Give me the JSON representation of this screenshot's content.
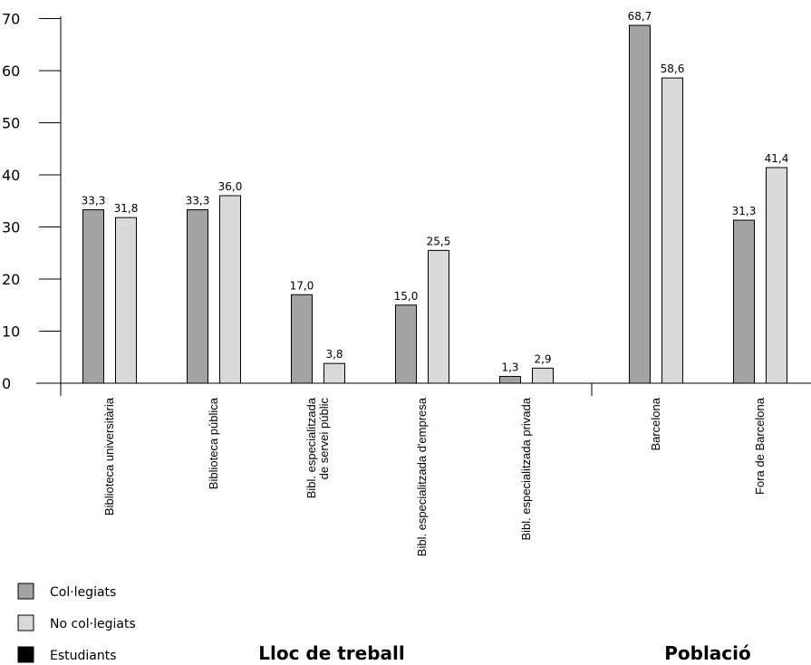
{
  "chart_data": {
    "type": "bar",
    "categories": [
      "Biblioteca universitària",
      "Biblioteca pública",
      [
        "Bibl. especialitzada",
        "de servei públic"
      ],
      "Bibl. especialitzada d'empresa",
      "Bibl. especialitzada privada",
      "Barcelona",
      "Fora de Barcelona"
    ],
    "series": [
      {
        "name": "Col·legiats",
        "values": [
          33.3,
          33.3,
          17.0,
          15.0,
          1.3,
          68.7,
          31.3
        ],
        "labels": [
          "33,3",
          "33,3",
          "17,0",
          "15,0",
          "1,3",
          "68,7",
          "31,3"
        ],
        "color": "#a3a3a3"
      },
      {
        "name": "No col·legiats",
        "values": [
          31.8,
          36.0,
          3.8,
          25.5,
          2.9,
          58.6,
          41.4
        ],
        "labels": [
          "31,8",
          "36,0",
          "3,8",
          "25,5",
          "2,9",
          "58,6",
          "41,4"
        ],
        "color": "#d9d9d9"
      }
    ],
    "legend": [
      {
        "name": "Col·legiats",
        "color": "#a3a3a3"
      },
      {
        "name": "No col·legiats",
        "color": "#d9d9d9"
      },
      {
        "name": "Estudiants",
        "color": "#000000"
      }
    ],
    "groups": [
      {
        "title": "Lloc de treball",
        "categories": [
          0,
          1,
          2,
          3,
          4
        ]
      },
      {
        "title": "Població",
        "categories": [
          5,
          6
        ]
      }
    ],
    "ylim": [
      0,
      70
    ],
    "yticks": [
      0,
      10,
      20,
      30,
      40,
      50,
      60,
      70
    ],
    "grid": false,
    "legend_position": "bottom-left"
  }
}
